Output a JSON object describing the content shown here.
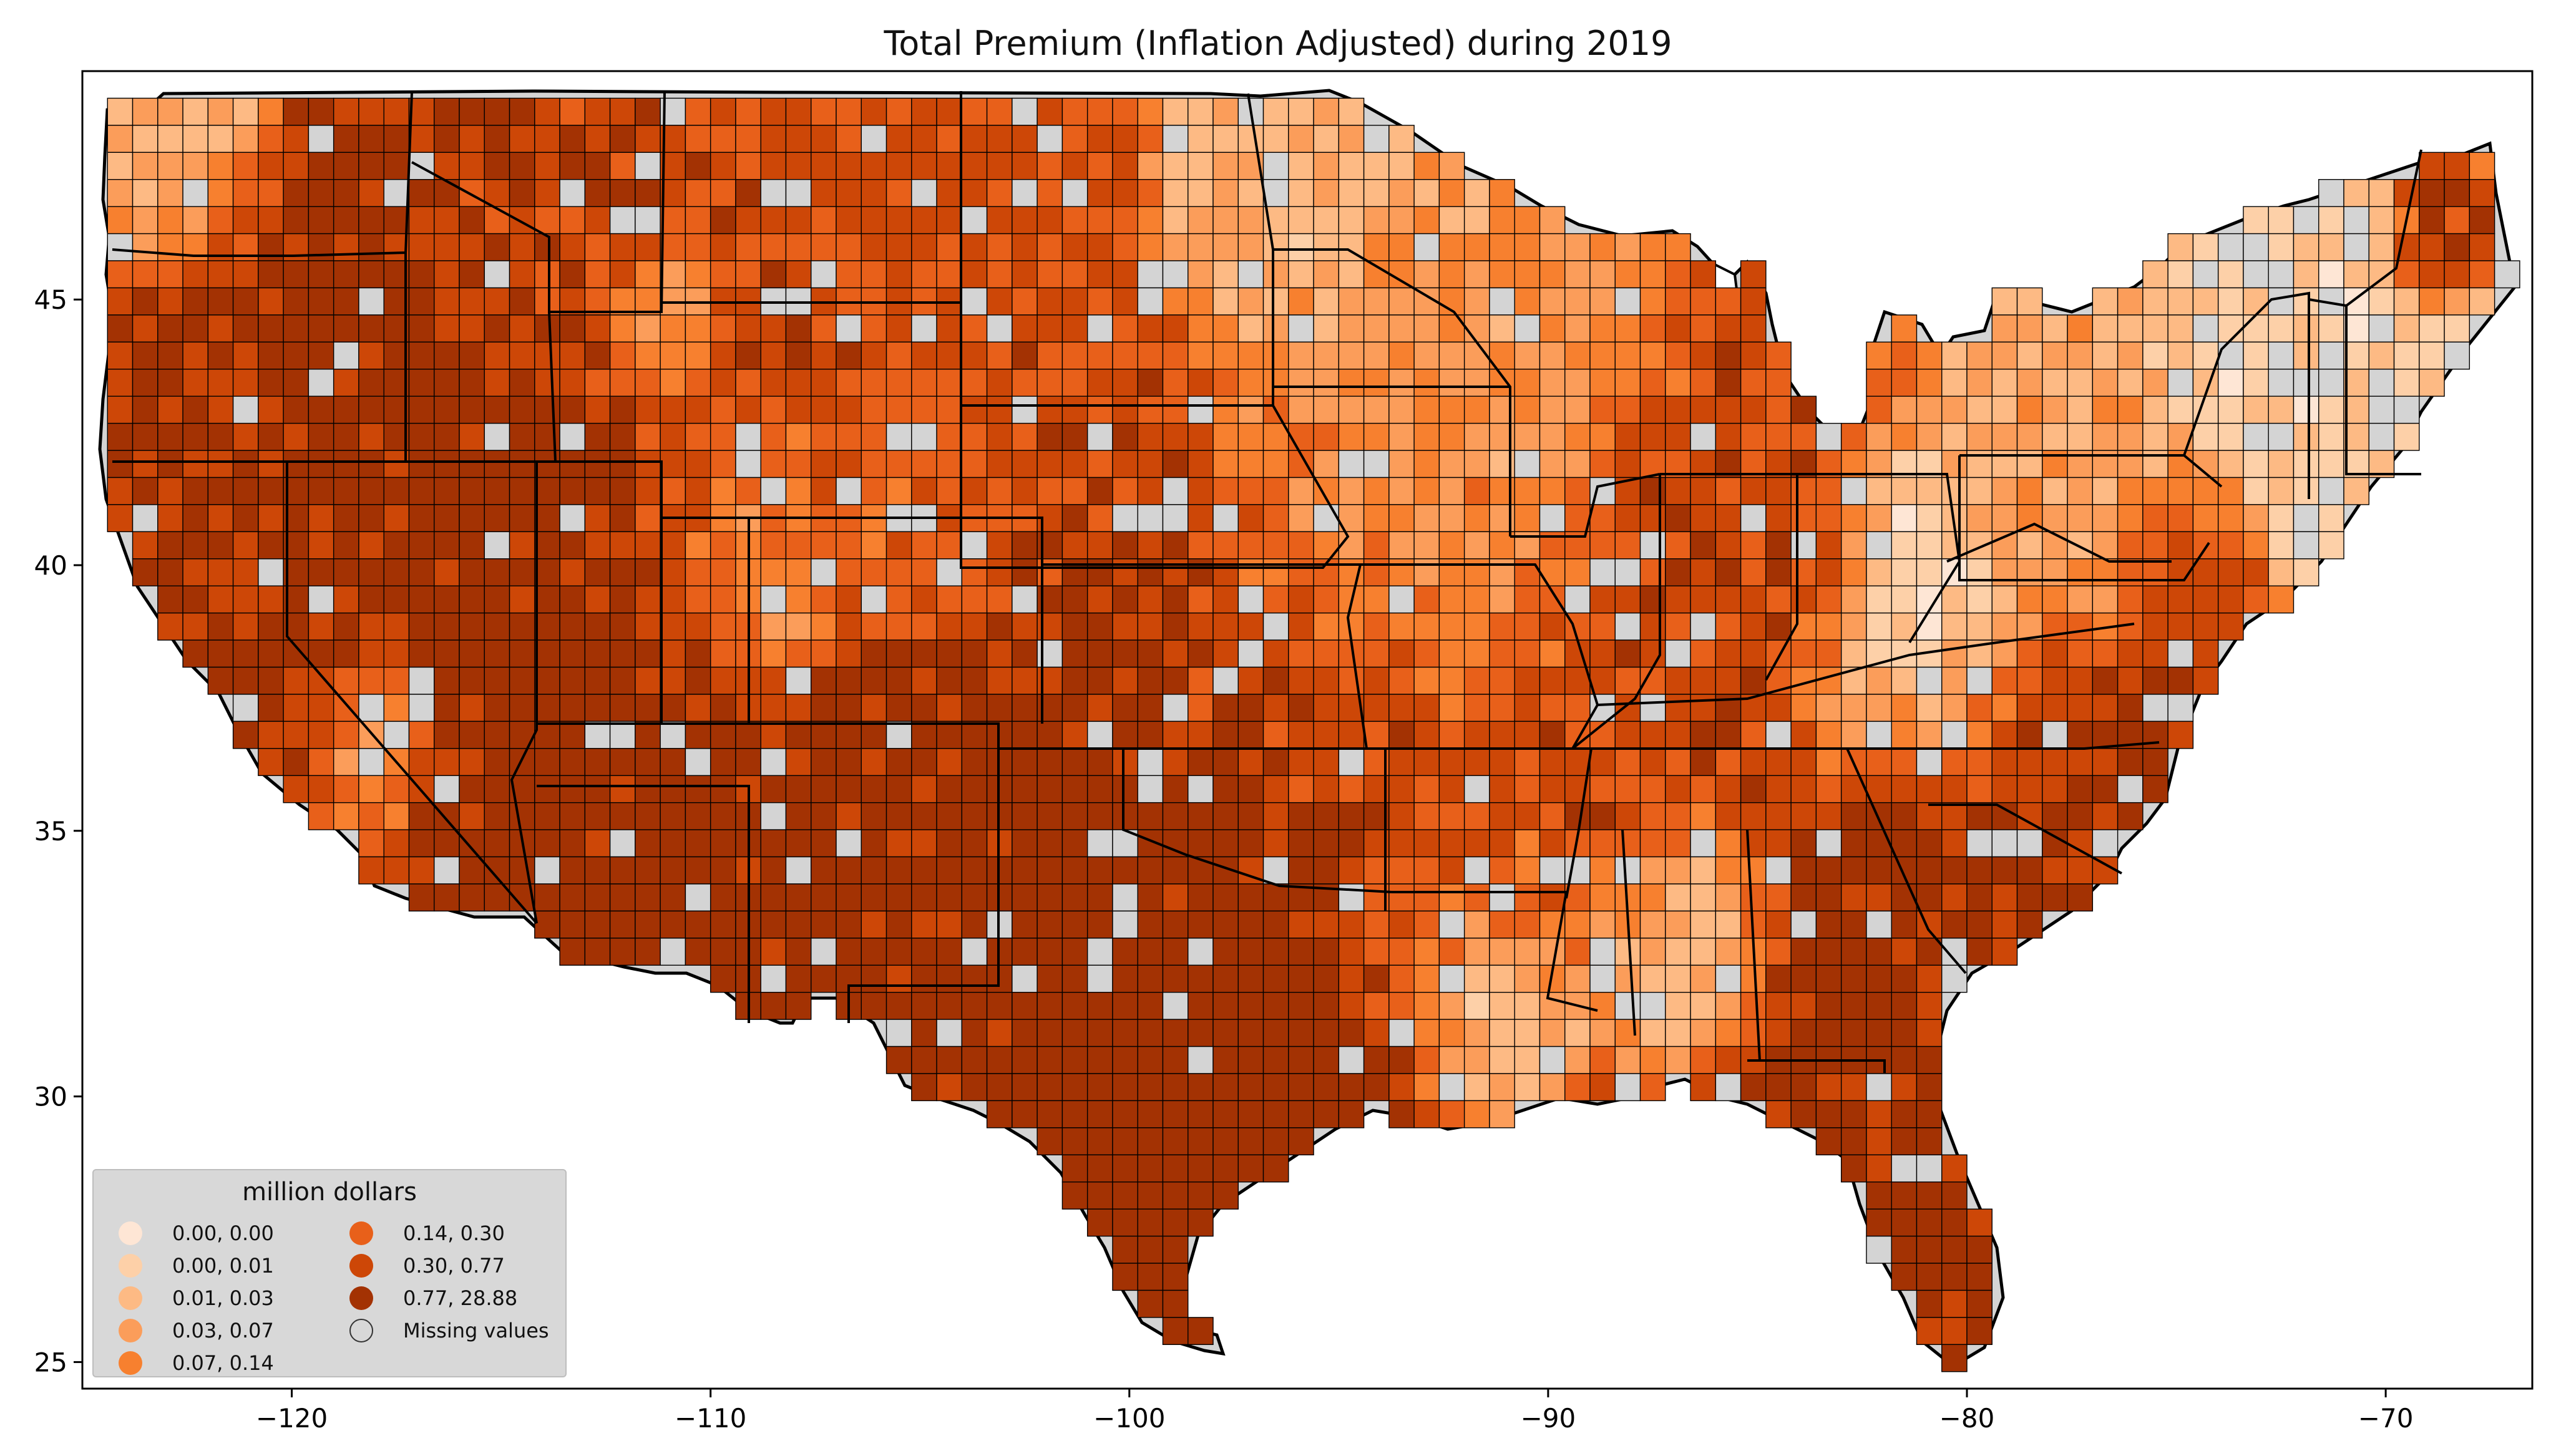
{
  "title": "Total  Premium  (Inflation Adjusted) during 2019",
  "chart_data": {
    "type": "choropleth",
    "region": "Contiguous United States, counties",
    "title": "Total  Premium  (Inflation Adjusted) during 2019",
    "xlim": [
      -125,
      -66.5
    ],
    "ylim": [
      24.5,
      49.3
    ],
    "x_ticks": [
      -120,
      -110,
      -100,
      -90,
      -80,
      -70
    ],
    "x_tick_labels": [
      "−120",
      "−110",
      "−100",
      "−90",
      "−80",
      "−70"
    ],
    "y_ticks": [
      25,
      30,
      35,
      40,
      45
    ],
    "y_tick_labels": [
      "25",
      "30",
      "35",
      "40",
      "45"
    ],
    "legend": {
      "title": "million dollars",
      "placement": "lower-left",
      "bins": [
        {
          "label": "0.00,  0.00",
          "range": [
            0.0,
            0.0
          ],
          "color": "#fee6d5"
        },
        {
          "label": "0.00,  0.01",
          "range": [
            0.0,
            0.01
          ],
          "color": "#fdd0a8"
        },
        {
          "label": "0.01,  0.03",
          "range": [
            0.01,
            0.03
          ],
          "color": "#fdba84"
        },
        {
          "label": "0.03,  0.07",
          "range": [
            0.03,
            0.07
          ],
          "color": "#fb9d5a"
        },
        {
          "label": "0.07,  0.14",
          "range": [
            0.07,
            0.14
          ],
          "color": "#f7802f"
        },
        {
          "label": "0.14,  0.30",
          "range": [
            0.14,
            0.3
          ],
          "color": "#e8601a"
        },
        {
          "label": "0.30,  0.77",
          "range": [
            0.3,
            0.77
          ],
          "color": "#cd4707"
        },
        {
          "label": "0.77, 28.88",
          "range": [
            0.77,
            28.88
          ],
          "color": "#a33203"
        },
        {
          "label": "Missing values",
          "range": null,
          "color": "#d4d4d4"
        }
      ]
    },
    "pattern_notes": "Highest premiums across Texas, the Southwest (Nevada, Arizona, New Mexico, Utah), western Kansas/Oklahoma, the Southeast coastal plain (Georgia, the Carolinas, Florida) and central California valley; low or missing values in New England, Appalachia, the Upper Midwest and the lower Mississippi valley."
  }
}
